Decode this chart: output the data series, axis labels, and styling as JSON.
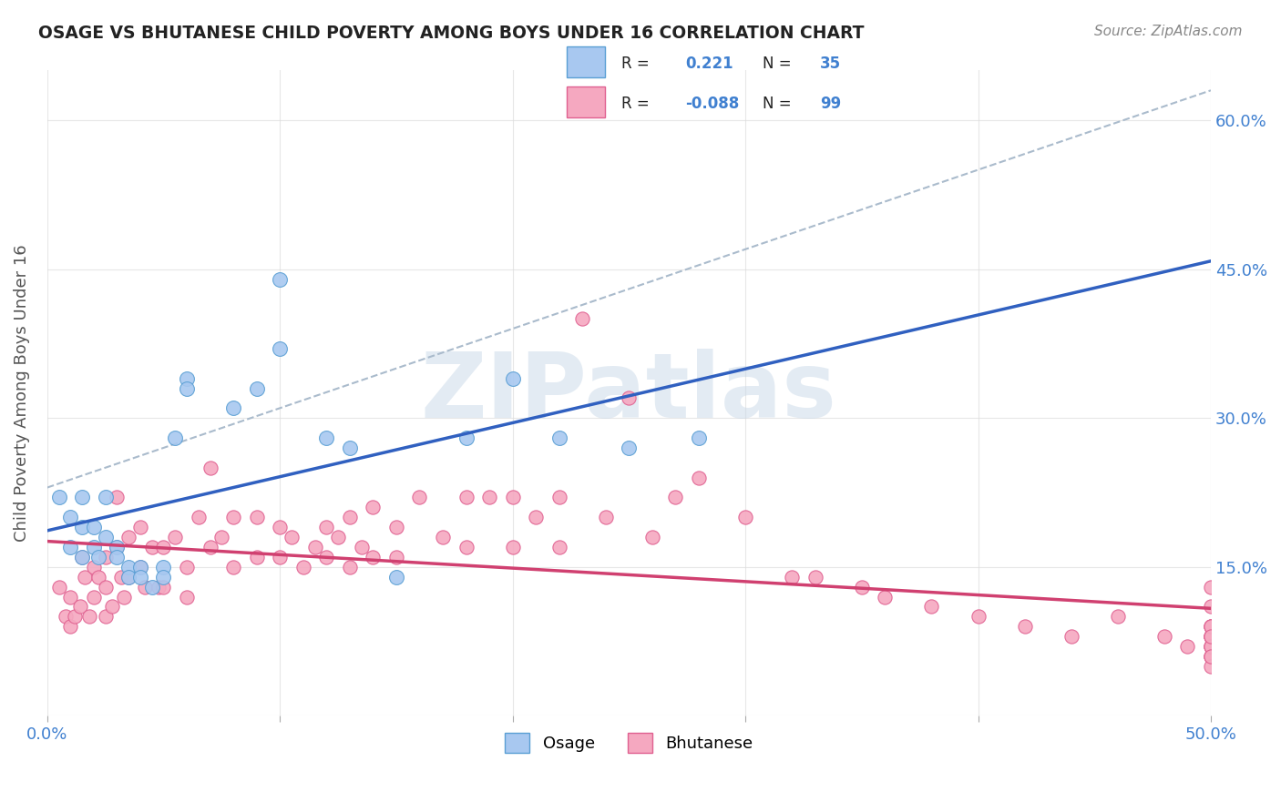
{
  "title": "OSAGE VS BHUTANESE CHILD POVERTY AMONG BOYS UNDER 16 CORRELATION CHART",
  "source": "Source: ZipAtlas.com",
  "ylabel": "Child Poverty Among Boys Under 16",
  "xlabel": "",
  "xlim": [
    0.0,
    0.5
  ],
  "ylim": [
    0.0,
    0.65
  ],
  "x_ticks": [
    0.0,
    0.1,
    0.2,
    0.3,
    0.4,
    0.5
  ],
  "x_tick_labels": [
    "0.0%",
    "",
    "",
    "",
    "",
    "50.0%"
  ],
  "y_ticks_right": [
    0.0,
    0.15,
    0.3,
    0.45,
    0.6
  ],
  "y_tick_labels_right": [
    "",
    "15.0%",
    "30.0%",
    "45.0%",
    "60.0%"
  ],
  "osage_color": "#a8c8f0",
  "osage_edge_color": "#5a9fd4",
  "bhutanese_color": "#f5a8c0",
  "bhutanese_edge_color": "#e06090",
  "trend_osage_color": "#3060c0",
  "trend_bhutanese_color": "#d04070",
  "dashed_line_color": "#aabbcc",
  "R_osage": 0.221,
  "N_osage": 35,
  "R_bhutanese": -0.088,
  "N_bhutanese": 99,
  "legend_R_color": "#000000",
  "legend_N_color": "#4080d0",
  "watermark": "ZIPatlas",
  "watermark_color": "#c8d8e8",
  "background_color": "#ffffff",
  "grid_color": "#dddddd",
  "osage_x": [
    0.005,
    0.01,
    0.01,
    0.015,
    0.015,
    0.015,
    0.02,
    0.02,
    0.022,
    0.025,
    0.025,
    0.03,
    0.03,
    0.035,
    0.035,
    0.04,
    0.04,
    0.045,
    0.05,
    0.05,
    0.055,
    0.06,
    0.06,
    0.08,
    0.09,
    0.1,
    0.1,
    0.12,
    0.13,
    0.15,
    0.18,
    0.2,
    0.22,
    0.25,
    0.28
  ],
  "osage_y": [
    0.22,
    0.2,
    0.17,
    0.22,
    0.19,
    0.16,
    0.19,
    0.17,
    0.16,
    0.22,
    0.18,
    0.17,
    0.16,
    0.15,
    0.14,
    0.15,
    0.14,
    0.13,
    0.15,
    0.14,
    0.28,
    0.34,
    0.33,
    0.31,
    0.33,
    0.44,
    0.37,
    0.28,
    0.27,
    0.14,
    0.28,
    0.34,
    0.28,
    0.27,
    0.28
  ],
  "bhutanese_x": [
    0.005,
    0.008,
    0.01,
    0.01,
    0.012,
    0.014,
    0.015,
    0.016,
    0.018,
    0.02,
    0.02,
    0.022,
    0.025,
    0.025,
    0.025,
    0.028,
    0.03,
    0.03,
    0.032,
    0.033,
    0.035,
    0.035,
    0.04,
    0.04,
    0.042,
    0.045,
    0.048,
    0.05,
    0.05,
    0.055,
    0.06,
    0.06,
    0.065,
    0.07,
    0.07,
    0.075,
    0.08,
    0.08,
    0.09,
    0.09,
    0.1,
    0.1,
    0.105,
    0.11,
    0.115,
    0.12,
    0.12,
    0.125,
    0.13,
    0.13,
    0.135,
    0.14,
    0.14,
    0.15,
    0.15,
    0.16,
    0.17,
    0.18,
    0.18,
    0.19,
    0.2,
    0.2,
    0.21,
    0.22,
    0.22,
    0.23,
    0.24,
    0.25,
    0.26,
    0.27,
    0.28,
    0.3,
    0.32,
    0.33,
    0.35,
    0.36,
    0.38,
    0.4,
    0.42,
    0.44,
    0.46,
    0.48,
    0.49,
    0.5,
    0.5,
    0.5,
    0.5,
    0.5,
    0.5,
    0.5,
    0.5,
    0.5,
    0.5,
    0.5,
    0.5,
    0.5,
    0.5,
    0.5,
    0.5
  ],
  "bhutanese_y": [
    0.13,
    0.1,
    0.12,
    0.09,
    0.1,
    0.11,
    0.16,
    0.14,
    0.1,
    0.15,
    0.12,
    0.14,
    0.16,
    0.13,
    0.1,
    0.11,
    0.22,
    0.17,
    0.14,
    0.12,
    0.18,
    0.14,
    0.19,
    0.15,
    0.13,
    0.17,
    0.13,
    0.17,
    0.13,
    0.18,
    0.15,
    0.12,
    0.2,
    0.25,
    0.17,
    0.18,
    0.2,
    0.15,
    0.2,
    0.16,
    0.19,
    0.16,
    0.18,
    0.15,
    0.17,
    0.19,
    0.16,
    0.18,
    0.2,
    0.15,
    0.17,
    0.21,
    0.16,
    0.19,
    0.16,
    0.22,
    0.18,
    0.22,
    0.17,
    0.22,
    0.22,
    0.17,
    0.2,
    0.22,
    0.17,
    0.4,
    0.2,
    0.32,
    0.18,
    0.22,
    0.24,
    0.2,
    0.14,
    0.14,
    0.13,
    0.12,
    0.11,
    0.1,
    0.09,
    0.08,
    0.1,
    0.08,
    0.07,
    0.13,
    0.09,
    0.07,
    0.11,
    0.08,
    0.06,
    0.09,
    0.08,
    0.07,
    0.06,
    0.08,
    0.05,
    0.07,
    0.06,
    0.09,
    0.08
  ]
}
